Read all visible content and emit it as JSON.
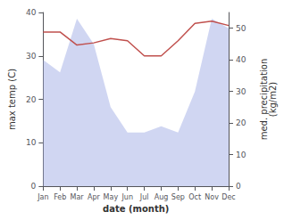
{
  "chart_data": {
    "type": "line",
    "categories": [
      "Jan",
      "Feb",
      "Mar",
      "Apr",
      "May",
      "Jun",
      "Jul",
      "Aug",
      "Sep",
      "Oct",
      "Nov",
      "Dec"
    ],
    "series": [
      {
        "type": "line",
        "color": "#c0504d",
        "values": [
          35.5,
          35.5,
          32.5,
          33.0,
          34.0,
          33.5,
          30.0,
          30.0,
          33.5,
          37.5,
          38.0,
          37.0
        ]
      },
      {
        "type": "area",
        "axis": "y2",
        "color": "#aab4e8",
        "values": [
          40,
          36,
          53,
          45,
          25,
          17,
          17,
          19,
          17,
          30,
          53,
          50
        ]
      }
    ],
    "xlabel": "date (month)",
    "ylabel": "max temp (C)",
    "y2label": "med. precipitation\n(kg/m2)",
    "ylim": [
      0,
      40
    ],
    "yticks": [
      0,
      10,
      20,
      30,
      40
    ],
    "y2lim": [
      0,
      55
    ],
    "y2ticks": [
      0,
      10,
      20,
      30,
      40,
      50
    ],
    "grid": false
  }
}
